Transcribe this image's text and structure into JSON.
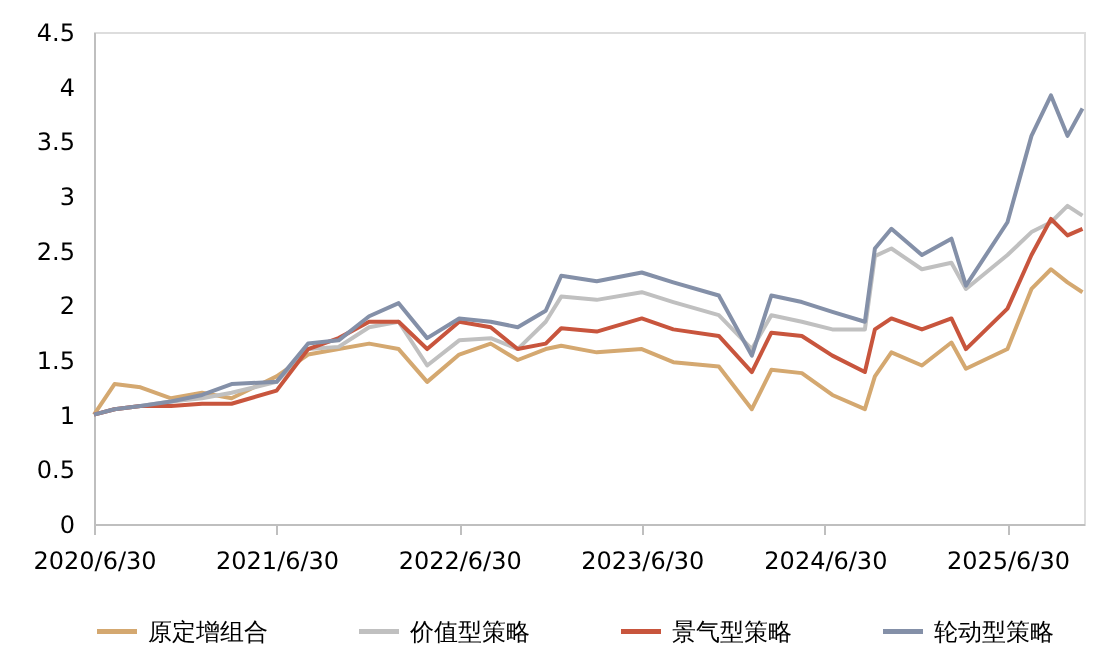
{
  "chart_data": {
    "type": "line",
    "x": [
      "2020-06-30",
      "2020-08-10",
      "2020-10-01",
      "2020-12-01",
      "2021-02-01",
      "2021-04-01",
      "2021-06-30",
      "2021-09-01",
      "2021-11-01",
      "2022-01-01",
      "2022-03-01",
      "2022-04-27",
      "2022-06-30",
      "2022-09-01",
      "2022-10-25",
      "2022-12-20",
      "2023-01-20",
      "2023-04-01",
      "2023-06-30",
      "2023-09-01",
      "2023-12-01",
      "2024-02-05",
      "2024-03-15",
      "2024-05-15",
      "2024-07-15",
      "2024-09-18",
      "2024-10-08",
      "2024-11-10",
      "2025-01-10",
      "2025-03-10",
      "2025-04-08",
      "2025-06-30",
      "2025-08-17",
      "2025-09-25",
      "2025-10-28",
      "2025-11-27"
    ],
    "series": [
      {
        "name": "原定增组合",
        "color": "#d4a870",
        "values": [
          1.0,
          1.28,
          1.25,
          1.15,
          1.2,
          1.15,
          1.35,
          1.55,
          1.6,
          1.65,
          1.6,
          1.3,
          1.55,
          1.65,
          1.5,
          1.6,
          1.63,
          1.57,
          1.6,
          1.48,
          1.44,
          1.05,
          1.41,
          1.38,
          1.18,
          1.05,
          1.35,
          1.57,
          1.45,
          1.66,
          1.42,
          1.6,
          2.15,
          2.33,
          2.21,
          2.12
        ]
      },
      {
        "name": "价值型策略",
        "color": "#c0c0c0",
        "values": [
          1.0,
          1.05,
          1.08,
          1.12,
          1.15,
          1.2,
          1.3,
          1.6,
          1.62,
          1.8,
          1.85,
          1.45,
          1.68,
          1.7,
          1.6,
          1.85,
          2.08,
          2.05,
          2.12,
          2.03,
          1.91,
          1.6,
          1.91,
          1.85,
          1.78,
          1.78,
          2.45,
          2.52,
          2.33,
          2.39,
          2.15,
          2.46,
          2.67,
          2.76,
          2.91,
          2.82
        ]
      },
      {
        "name": "景气型策略",
        "color": "#c8553d",
        "values": [
          1.0,
          1.05,
          1.08,
          1.08,
          1.1,
          1.1,
          1.22,
          1.6,
          1.7,
          1.85,
          1.85,
          1.6,
          1.85,
          1.8,
          1.6,
          1.65,
          1.79,
          1.76,
          1.88,
          1.78,
          1.72,
          1.39,
          1.75,
          1.72,
          1.54,
          1.39,
          1.78,
          1.88,
          1.78,
          1.88,
          1.6,
          1.97,
          2.46,
          2.79,
          2.64,
          2.7
        ]
      },
      {
        "name": "轮动型策略",
        "color": "#8490a8",
        "values": [
          1.0,
          1.05,
          1.08,
          1.12,
          1.18,
          1.28,
          1.3,
          1.65,
          1.68,
          1.9,
          2.02,
          1.7,
          1.88,
          1.85,
          1.8,
          1.95,
          2.27,
          2.22,
          2.3,
          2.21,
          2.09,
          1.54,
          2.09,
          2.03,
          1.94,
          1.85,
          2.52,
          2.7,
          2.46,
          2.61,
          2.18,
          2.76,
          3.55,
          3.92,
          3.55,
          3.8
        ]
      }
    ],
    "xlim": [
      "2020-06-30",
      "2025-11-30"
    ],
    "xticks": [
      {
        "value": "2020-06-30",
        "label": "2020/6/30"
      },
      {
        "value": "2021-06-30",
        "label": "2021/6/30"
      },
      {
        "value": "2022-06-30",
        "label": "2022/6/30"
      },
      {
        "value": "2023-06-30",
        "label": "2023/6/30"
      },
      {
        "value": "2024-06-30",
        "label": "2024/6/30"
      },
      {
        "value": "2025-06-30",
        "label": "2025/6/30"
      }
    ],
    "ylim": [
      0,
      4.5
    ],
    "yticks": [
      0,
      0.5,
      1,
      1.5,
      2,
      2.5,
      3,
      3.5,
      4,
      4.5
    ],
    "grid": false,
    "legend": "bottom",
    "marker": "none",
    "line_style": "solid"
  }
}
